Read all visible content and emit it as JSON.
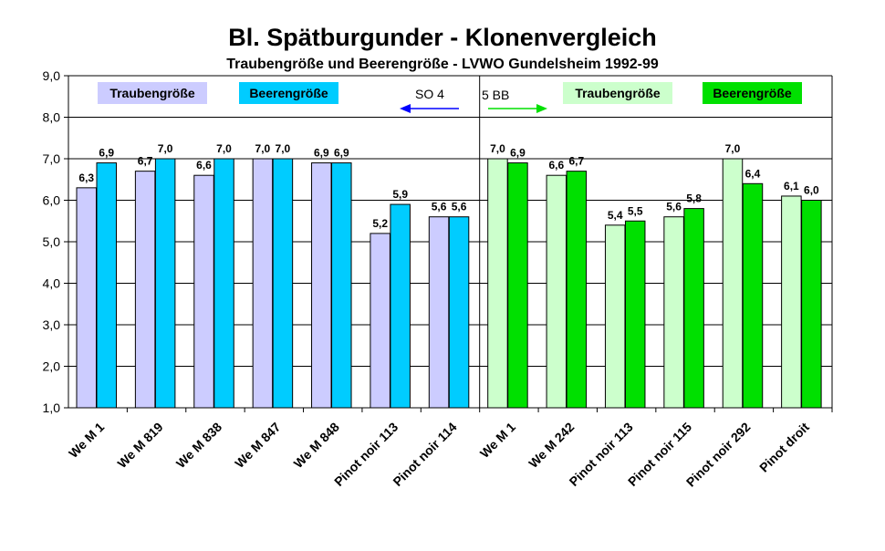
{
  "chart_data": {
    "type": "bar",
    "title": "Bl. Spätburgunder - Klonenvergleich",
    "subtitle": "Traubengröße und Beerengröße - LVWO Gundelsheim 1992-99",
    "ylim": [
      1.0,
      9.0
    ],
    "yticks": [
      "1,0",
      "2,0",
      "3,0",
      "4,0",
      "5,0",
      "6,0",
      "7,0",
      "8,0",
      "9,0"
    ],
    "grid": true,
    "groups": [
      {
        "label": "SO 4",
        "arrow": "left",
        "colors": {
          "Traubengröße": "#ccccff",
          "Beerengröße": "#00ccff"
        },
        "categories": [
          "We M 1",
          "We M 819",
          "We M 838",
          "We M 847",
          "We M 848",
          "Pinot noir 113",
          "Pinot noir 114"
        ],
        "series": [
          {
            "name": "Traubengröße",
            "values": [
              6.3,
              6.7,
              6.6,
              7.0,
              6.9,
              5.2,
              5.6
            ],
            "labels": [
              "6,3",
              "6,7",
              "6,6",
              "7,0",
              "6,9",
              "5,2",
              "5,6"
            ]
          },
          {
            "name": "Beerengröße",
            "values": [
              6.9,
              7.0,
              7.0,
              7.0,
              6.9,
              5.9,
              5.6
            ],
            "labels": [
              "6,9",
              "7,0",
              "7,0",
              "7,0",
              "6,9",
              "5,9",
              "5,6"
            ]
          }
        ]
      },
      {
        "label": "5 BB",
        "arrow": "right",
        "colors": {
          "Traubengröße": "#ccffcc",
          "Beerengröße": "#00e000"
        },
        "categories": [
          "We M 1",
          "We M 242",
          "Pinot noir 113",
          "Pinot noir 115",
          "Pinot noir 292",
          "Pinot droit"
        ],
        "series": [
          {
            "name": "Traubengröße",
            "values": [
              7.0,
              6.6,
              5.4,
              5.6,
              7.0,
              6.1
            ],
            "labels": [
              "7,0",
              "6,6",
              "5,4",
              "5,6",
              "7,0",
              "6,1"
            ]
          },
          {
            "name": "Beerengröße",
            "values": [
              6.9,
              6.7,
              5.5,
              5.8,
              6.4,
              6.0
            ],
            "labels": [
              "6,9",
              "6,7",
              "5,5",
              "5,8",
              "6,4",
              "6,0"
            ]
          }
        ]
      }
    ],
    "legend": [
      {
        "text": "Traubengröße",
        "color": "#ccccff"
      },
      {
        "text": "Beerengröße",
        "color": "#00ccff"
      },
      {
        "text": "Traubengröße",
        "color": "#ccffcc"
      },
      {
        "text": "Beerengröße",
        "color": "#00e000"
      }
    ],
    "arrow_colors": {
      "left": "#0000ff",
      "right": "#00e000"
    }
  }
}
